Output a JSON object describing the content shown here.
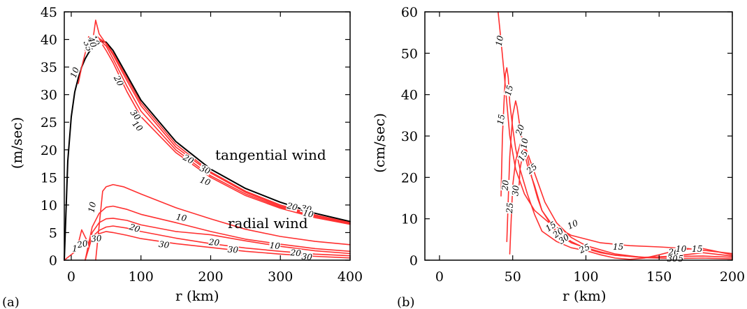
{
  "chart_data": [
    {
      "panel_label": "(a)",
      "type": "line",
      "xlabel": "r (km)",
      "ylabel": "(m/sec)",
      "xlim": [
        -10,
        400
      ],
      "ylim": [
        0,
        45
      ],
      "xticks": [
        0,
        100,
        200,
        300,
        400
      ],
      "yticks": [
        0,
        5,
        10,
        15,
        20,
        25,
        30,
        35,
        40,
        45
      ],
      "grid": false,
      "annotations": [
        "tangential wind",
        "radial wind"
      ],
      "series": [
        {
          "kind": "black reference",
          "color": "#000000",
          "x": [
            -10,
            -5,
            0,
            5,
            10,
            15,
            20,
            25,
            30,
            35,
            40,
            50,
            60,
            80,
            100,
            150,
            200,
            250,
            300,
            350,
            400
          ],
          "y": [
            0,
            18,
            26,
            30.5,
            33,
            35,
            36.5,
            37.6,
            38.5,
            39.2,
            39.7,
            39.5,
            38,
            33.5,
            29,
            21.5,
            16.5,
            13,
            10.5,
            8.5,
            7
          ]
        },
        {
          "color": "#ff3030",
          "x": [
            10,
            15,
            20,
            25,
            30,
            35,
            40,
            50,
            60,
            80,
            100,
            150,
            200,
            250,
            300,
            350,
            400
          ],
          "y": [
            32,
            35,
            37.5,
            39.5,
            40.2,
            40.8,
            40.2,
            39.3,
            37.5,
            33,
            28.5,
            21,
            16,
            12.5,
            10,
            8.2,
            6.8
          ]
        },
        {
          "color": "#ff3030",
          "x": [
            20,
            25,
            30,
            35,
            40,
            50,
            60,
            80,
            100,
            150,
            200,
            250,
            300,
            350,
            400
          ],
          "y": [
            38,
            40.5,
            39,
            43.5,
            41,
            39.2,
            37.2,
            32.5,
            28,
            20.5,
            15.8,
            12.3,
            9.8,
            8,
            6.7
          ]
        },
        {
          "color": "#ff3030",
          "x": [
            40,
            50,
            60,
            80,
            100,
            150,
            200,
            250,
            300,
            350,
            400
          ],
          "y": [
            40,
            38.8,
            36.5,
            31.5,
            27,
            20,
            15.3,
            12,
            9.6,
            7.9,
            6.6
          ]
        },
        {
          "color": "#ff3030",
          "x": [
            45,
            50,
            60,
            80,
            100,
            150,
            200,
            250,
            300,
            350,
            400
          ],
          "y": [
            39,
            38,
            35.8,
            30.5,
            26,
            19.5,
            15,
            11.7,
            9.4,
            7.7,
            6.5
          ]
        },
        {
          "color": "#ff3030",
          "x": [
            35,
            45,
            50,
            60,
            75,
            100,
            150,
            200,
            250,
            300,
            350,
            400
          ],
          "y": [
            0,
            12.5,
            13.3,
            13.7,
            13.3,
            12,
            9.5,
            7.5,
            5.6,
            4.3,
            3.4,
            2.8
          ]
        },
        {
          "color": "#ff3030",
          "x": [
            20,
            30,
            40,
            50,
            60,
            80,
            100,
            150,
            200,
            250,
            300,
            350,
            400
          ],
          "y": [
            0,
            6,
            8.5,
            9.6,
            9.8,
            9.2,
            8.3,
            6.8,
            5.2,
            3.8,
            2.9,
            2.1,
            1.6
          ]
        },
        {
          "color": "#ff3030",
          "x": [
            20,
            30,
            40,
            50,
            60,
            80,
            100,
            150,
            200,
            250,
            300,
            350,
            400
          ],
          "y": [
            0,
            5,
            6.8,
            7.5,
            7.6,
            7.2,
            6.4,
            5.2,
            4.6,
            3.5,
            2.5,
            1.7,
            1.2
          ]
        },
        {
          "color": "#ff3030",
          "x": [
            20,
            30,
            40,
            50,
            60,
            80,
            100,
            150,
            200,
            250,
            300,
            350,
            400
          ],
          "y": [
            0,
            4.2,
            5.4,
            6,
            6.2,
            5.8,
            5.2,
            4,
            3,
            2.2,
            1.6,
            1.1,
            0.8
          ]
        },
        {
          "color": "#ff3030",
          "x": [
            -10,
            5,
            10,
            15,
            20,
            25,
            30,
            40,
            50,
            60,
            80,
            100,
            150,
            200,
            250,
            300,
            350,
            400
          ],
          "y": [
            0,
            1.5,
            3,
            5.5,
            4.2,
            3,
            3.8,
            4.8,
            5.2,
            5,
            4.5,
            3.9,
            3,
            2.3,
            1.6,
            1.1,
            0.7,
            0.4
          ]
        }
      ],
      "contour_labels": [
        {
          "text": "10",
          "x": 34,
          "y": 39.8,
          "rot": 65
        },
        {
          "text": "35",
          "x": 24,
          "y": 38.8,
          "rot": 70
        },
        {
          "text": "40",
          "x": 30,
          "y": 39.5,
          "rot": 70
        },
        {
          "text": "10",
          "x": 5,
          "y": 34,
          "rot": -70
        },
        {
          "text": "20",
          "x": 68,
          "y": 32.5,
          "rot": 62
        },
        {
          "text": "30",
          "x": 92,
          "y": 26.3,
          "rot": 50
        },
        {
          "text": "10",
          "x": 95,
          "y": 24.3,
          "rot": 48
        },
        {
          "text": "20",
          "x": 168,
          "y": 18.3,
          "rot": 28
        },
        {
          "text": "30",
          "x": 192,
          "y": 16.4,
          "rot": 22
        },
        {
          "text": "10",
          "x": 192,
          "y": 14.3,
          "rot": 20
        },
        {
          "text": "20",
          "x": 317,
          "y": 9.7,
          "rot": 14
        },
        {
          "text": "30",
          "x": 337,
          "y": 9.3,
          "rot": 12
        },
        {
          "text": "10",
          "x": 340,
          "y": 8.4,
          "rot": 12
        },
        {
          "text": "10",
          "x": 30,
          "y": 9.6,
          "rot": -78
        },
        {
          "text": "10",
          "x": 158,
          "y": 7.7,
          "rot": 10
        },
        {
          "text": "20",
          "x": 91,
          "y": 5.8,
          "rot": 18
        },
        {
          "text": "30",
          "x": 133,
          "y": 2.8,
          "rot": 8
        },
        {
          "text": "20",
          "x": 205,
          "y": 3.2,
          "rot": 5
        },
        {
          "text": "30",
          "x": 232,
          "y": 1.9,
          "rot": 4
        },
        {
          "text": "10",
          "x": 292,
          "y": 2.6,
          "rot": 5
        },
        {
          "text": "20",
          "x": 322,
          "y": 1.3,
          "rot": 5
        },
        {
          "text": "30",
          "x": 338,
          "y": 0.6,
          "rot": 5
        },
        {
          "text": "20",
          "x": 16,
          "y": 2.9,
          "rot": -10
        },
        {
          "text": "30",
          "x": 36,
          "y": 3.9,
          "rot": -5
        },
        {
          "text": "1",
          "x": 5,
          "y": 2.1,
          "rot": 0
        }
      ]
    },
    {
      "panel_label": "(b)",
      "type": "line",
      "xlabel": "r (km)",
      "ylabel": "(cm/sec)",
      "xlim": [
        -10,
        200
      ],
      "ylim": [
        0,
        60
      ],
      "xticks": [
        0,
        50,
        100,
        150,
        200
      ],
      "yticks": [
        0,
        10,
        20,
        30,
        40,
        50,
        60
      ],
      "grid": false,
      "series": [
        {
          "color": "#ff3030",
          "x": [
            40,
            42,
            45,
            48,
            52,
            58,
            65,
            75,
            90,
            110,
            130,
            150,
            170,
            185,
            200
          ],
          "y": [
            60,
            53,
            42,
            30,
            22,
            16,
            12,
            9,
            6,
            4.2,
            3.5,
            3.2,
            2.8,
            2.2,
            1.6
          ]
        },
        {
          "color": "#ff3030",
          "x": [
            42,
            43,
            45,
            46,
            47,
            48,
            50,
            52,
            55,
            60,
            65,
            70,
            80,
            90,
            100,
            110,
            120,
            130,
            140,
            150,
            160,
            170,
            180,
            200
          ],
          "y": [
            15.5,
            30,
            45,
            46.5,
            44,
            38,
            32,
            27,
            22,
            16,
            11,
            7,
            4.5,
            3,
            2.3,
            1.3,
            0.5,
            0.2,
            0.5,
            1.3,
            2.2,
            2.7,
            2.8,
            1.3
          ]
        },
        {
          "color": "#ff3030",
          "x": [
            46,
            47,
            48,
            50,
            52,
            53,
            55,
            58,
            60,
            65,
            70,
            80,
            90,
            100,
            110,
            120,
            140,
            160,
            180,
            200
          ],
          "y": [
            4.5,
            15,
            25,
            35,
            38.5,
            37,
            32,
            26,
            23,
            18,
            12,
            6.5,
            4.2,
            3,
            2,
            1.2,
            0.6,
            1,
            1.8,
            1
          ]
        },
        {
          "color": "#ff3030",
          "x": [
            48,
            49,
            50,
            52,
            55,
            57,
            58,
            60,
            63,
            67,
            70,
            80,
            90,
            100,
            110,
            120,
            140,
            160,
            180,
            200
          ],
          "y": [
            1.5,
            10,
            18,
            24,
            28,
            29,
            28,
            25,
            20,
            15,
            12,
            7,
            4.5,
            2.8,
            1.8,
            1.2,
            0.7,
            0.9,
            1,
            0.7
          ]
        },
        {
          "color": "#ff3030",
          "x": [
            54,
            55,
            57,
            59,
            61,
            64,
            68,
            72,
            80,
            90,
            100,
            120,
            140,
            160,
            180,
            200
          ],
          "y": [
            16,
            22,
            26,
            27,
            25,
            22,
            18,
            14,
            9,
            5.5,
            3.5,
            1.5,
            0.6,
            0.4,
            0.5,
            0.3
          ]
        }
      ],
      "contour_labels": [
        {
          "text": "10",
          "x": 41,
          "y": 53,
          "rot": -80
        },
        {
          "text": "15",
          "x": 47.5,
          "y": 41,
          "rot": -75
        },
        {
          "text": "15",
          "x": 42,
          "y": 34,
          "rot": -80
        },
        {
          "text": "20",
          "x": 55,
          "y": 31.5,
          "rot": -70
        },
        {
          "text": "10",
          "x": 58,
          "y": 28.2,
          "rot": -80
        },
        {
          "text": "15",
          "x": 57,
          "y": 25.2,
          "rot": -60
        },
        {
          "text": "25",
          "x": 63,
          "y": 22.1,
          "rot": -40
        },
        {
          "text": "20",
          "x": 45,
          "y": 18.1,
          "rot": -85
        },
        {
          "text": "30",
          "x": 52,
          "y": 16.8,
          "rot": -85
        },
        {
          "text": "25",
          "x": 48,
          "y": 12.6,
          "rot": -85
        },
        {
          "text": "10",
          "x": 91,
          "y": 8.6,
          "rot": -25
        },
        {
          "text": "15",
          "x": 76,
          "y": 8.1,
          "rot": -35
        },
        {
          "text": "20",
          "x": 81,
          "y": 6.6,
          "rot": -35
        },
        {
          "text": "30",
          "x": 85,
          "y": 5.1,
          "rot": -35
        },
        {
          "text": "25",
          "x": 99,
          "y": 2.8,
          "rot": -25
        },
        {
          "text": "15",
          "x": 122,
          "y": 3.2,
          "rot": 0
        },
        {
          "text": "20",
          "x": 160,
          "y": 1.9,
          "rot": 0
        },
        {
          "text": "10",
          "x": 165,
          "y": 2.7,
          "rot": 0
        },
        {
          "text": "15",
          "x": 176,
          "y": 2.7,
          "rot": 0
        },
        {
          "text": "25",
          "x": 163,
          "y": 0.3,
          "rot": 0
        },
        {
          "text": "30",
          "x": 159,
          "y": 0.3,
          "rot": 0
        }
      ]
    }
  ]
}
